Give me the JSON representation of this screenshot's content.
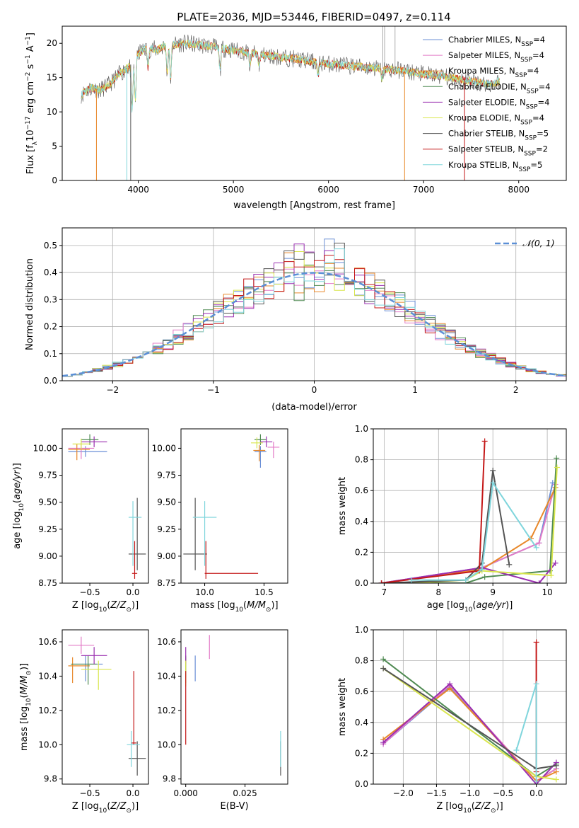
{
  "figure": {
    "title": "PLATE=2036, MJD=53446, FIBERID=0497, z=0.114"
  },
  "palette": {
    "Chabrier MILES": "#6b8fd6",
    "Salpeter MILES": "#e37bc7",
    "Kroupa MILES": "#e8882a",
    "Chabrier ELODIE": "#4f8a52",
    "Salpeter ELODIE": "#9a2fb0",
    "Kroupa ELODIE": "#d9e64d",
    "Chabrier STELIB": "#555555",
    "Salpeter STELIB": "#c41818",
    "Kroupa STELIB": "#7fd5dc",
    "gauss": "#5b8fd6",
    "grid": "#b0b0b0"
  },
  "chart_data": [
    {
      "id": "spectrum",
      "type": "line",
      "title": "PLATE=2036, MJD=53446, FIBERID=0497, z=0.114",
      "xlabel": "wavelength [Angstrom, rest frame]",
      "ylabel": "Flux [f_λ 10^-17 erg cm^-2 s^-1 A^-1]",
      "xlim": [
        3200,
        8500
      ],
      "ylim": [
        0,
        22.5
      ],
      "xticks": [
        4000,
        5000,
        6000,
        7000,
        8000
      ],
      "yticks": [
        0,
        5,
        10,
        15,
        20
      ],
      "grid": false,
      "legend_position": "upper-right",
      "legend": [
        "Chabrier MILES, N_SSP=4",
        "Salpeter MILES, N_SSP=4",
        "Kroupa MILES, N_SSP=4",
        "Chabrier ELODIE, N_SSP=4",
        "Salpeter ELODIE, N_SSP=4",
        "Kroupa ELODIE, N_SSP=4",
        "Chabrier STELIB, N_SSP=5",
        "Salpeter STELIB, N_SSP=2",
        "Kroupa STELIB, N_SSP=5"
      ],
      "continuum": {
        "x": [
          3400,
          3500,
          3600,
          3700,
          3800,
          3900,
          4000,
          4100,
          4200,
          4300,
          4500,
          4700,
          5000,
          5300,
          5600,
          6000,
          6400,
          6800,
          7000,
          7200,
          7500,
          7700,
          7800
        ],
        "y": [
          12.5,
          13.5,
          13.2,
          14.0,
          15.5,
          16.5,
          18.5,
          19.5,
          19.0,
          19.8,
          20.0,
          19.7,
          19.0,
          18.3,
          17.8,
          17.0,
          16.5,
          16.0,
          15.5,
          15.2,
          14.5,
          14.0,
          14.5
        ]
      }
    },
    {
      "id": "residuals",
      "type": "step",
      "xlabel": "(data-model)/error",
      "ylabel": "Normed distribution",
      "xlim": [
        -2.5,
        2.5
      ],
      "ylim": [
        0,
        0.565
      ],
      "xticks": [
        -2,
        -1,
        0,
        1,
        2
      ],
      "yticks": [
        0.0,
        0.1,
        0.2,
        0.3,
        0.4,
        0.5
      ],
      "grid": true,
      "legend": [
        "𝒩(0, 1)"
      ],
      "legend_position": "upper-right",
      "bin_width": 0.1
    },
    {
      "id": "age_vs_Z",
      "type": "errorbar",
      "xlabel": "Z [log10(Z/Z⊙)]",
      "ylabel": "age  [log10(age/yr)]",
      "xlim": [
        -0.82,
        0.18
      ],
      "ylim": [
        8.75,
        10.18
      ],
      "xticks": [
        -0.5,
        0.0
      ],
      "yticks": [
        8.75,
        9.0,
        9.25,
        9.5,
        9.75,
        10.0
      ],
      "grid": false,
      "points": [
        {
          "s": "Chabrier MILES",
          "x": -0.55,
          "y": 9.97,
          "xl": 0.2,
          "xh": 0.25,
          "yl": 0.05,
          "yh": 0.05
        },
        {
          "s": "Salpeter MILES",
          "x": -0.6,
          "y": 10.0,
          "xl": 0.15,
          "xh": 0.15,
          "yl": 0.1,
          "yh": 0.05
        },
        {
          "s": "Kroupa MILES",
          "x": -0.65,
          "y": 9.99,
          "xl": 0.1,
          "xh": 0.15,
          "yl": 0.1,
          "yh": 0.05
        },
        {
          "s": "Chabrier ELODIE",
          "x": -0.5,
          "y": 10.08,
          "xl": 0.1,
          "xh": 0.1,
          "yl": 0.05,
          "yh": 0.05
        },
        {
          "s": "Salpeter ELODIE",
          "x": -0.45,
          "y": 10.06,
          "xl": 0.15,
          "xh": 0.15,
          "yl": 0.05,
          "yh": 0.05
        },
        {
          "s": "Kroupa ELODIE",
          "x": -0.6,
          "y": 10.04,
          "xl": 0.1,
          "xh": 0.1,
          "yl": 0.05,
          "yh": 0.05
        },
        {
          "s": "Chabrier STELIB",
          "x": 0.05,
          "y": 9.02,
          "xl": 0.1,
          "xh": 0.1,
          "yl": 0.15,
          "yh": 0.52
        },
        {
          "s": "Salpeter STELIB",
          "x": 0.02,
          "y": 8.84,
          "xl": 0.03,
          "xh": 0.03,
          "yl": 0.05,
          "yh": 0.3
        },
        {
          "s": "Kroupa STELIB",
          "x": 0.0,
          "y": 9.36,
          "xl": 0.05,
          "xh": 0.1,
          "yl": 0.45,
          "yh": 0.15
        }
      ]
    },
    {
      "id": "age_vs_mass",
      "type": "errorbar",
      "xlabel": "mass [log10(M/M⊙)]",
      "xlim": [
        9.8,
        10.7
      ],
      "ylim": [
        8.75,
        10.18
      ],
      "xticks": [
        10.0,
        10.5
      ],
      "yticks": [
        8.75,
        9.0,
        9.25,
        9.5,
        9.75,
        10.0
      ],
      "grid": false,
      "points": [
        {
          "s": "Chabrier MILES",
          "x": 10.47,
          "y": 9.97,
          "xl": 0.05,
          "xh": 0.05,
          "yl": 0.15,
          "yh": 0.05
        },
        {
          "s": "Salpeter MILES",
          "x": 10.58,
          "y": 10.01,
          "xl": 0.05,
          "xh": 0.05,
          "yl": 0.1,
          "yh": 0.05
        },
        {
          "s": "Kroupa MILES",
          "x": 10.46,
          "y": 9.98,
          "xl": 0.05,
          "xh": 0.05,
          "yl": 0.1,
          "yh": 0.05
        },
        {
          "s": "Chabrier ELODIE",
          "x": 10.47,
          "y": 10.08,
          "xl": 0.05,
          "xh": 0.05,
          "yl": 0.05,
          "yh": 0.05
        },
        {
          "s": "Salpeter ELODIE",
          "x": 10.52,
          "y": 10.06,
          "xl": 0.05,
          "xh": 0.05,
          "yl": 0.05,
          "yh": 0.05
        },
        {
          "s": "Kroupa ELODIE",
          "x": 10.44,
          "y": 10.05,
          "xl": 0.05,
          "xh": 0.05,
          "yl": 0.05,
          "yh": 0.05
        },
        {
          "s": "Chabrier STELIB",
          "x": 9.92,
          "y": 9.02,
          "xl": 0.1,
          "xh": 0.1,
          "yl": 0.15,
          "yh": 0.52
        },
        {
          "s": "Salpeter STELIB",
          "x": 10.01,
          "y": 8.84,
          "xl": 0.01,
          "xh": 0.44,
          "yl": 0.05,
          "yh": 0.3
        },
        {
          "s": "Kroupa STELIB",
          "x": 10.0,
          "y": 9.36,
          "xl": 0.1,
          "xh": 0.1,
          "yl": 0.45,
          "yh": 0.15
        }
      ]
    },
    {
      "id": "weights_vs_age",
      "type": "line",
      "xlabel": "age  [log10(age/yr)]",
      "ylabel": "mass weight",
      "xlim": [
        6.8,
        10.35
      ],
      "ylim": [
        0,
        1.0
      ],
      "xticks": [
        7,
        8,
        9,
        10
      ],
      "yticks": [
        0.0,
        0.2,
        0.4,
        0.6,
        0.8,
        1.0
      ],
      "grid": true,
      "series": [
        {
          "s": "Chabrier MILES",
          "x": [
            6.95,
            8.8,
            9.85,
            10.1
          ],
          "y": [
            0.0,
            0.1,
            0.26,
            0.65
          ]
        },
        {
          "s": "Salpeter MILES",
          "x": [
            6.95,
            8.8,
            9.85,
            10.15
          ],
          "y": [
            0.0,
            0.1,
            0.26,
            0.64
          ]
        },
        {
          "s": "Kroupa MILES",
          "x": [
            6.95,
            8.8,
            9.7,
            10.15
          ],
          "y": [
            0.0,
            0.09,
            0.29,
            0.62
          ]
        },
        {
          "s": "Chabrier ELODIE",
          "x": [
            7.5,
            8.5,
            8.85,
            10.05,
            10.17
          ],
          "y": [
            0.0,
            0.0,
            0.04,
            0.08,
            0.81
          ]
        },
        {
          "s": "Salpeter ELODIE",
          "x": [
            6.95,
            8.8,
            9.85,
            10.15
          ],
          "y": [
            0.0,
            0.1,
            0.0,
            0.13
          ]
        },
        {
          "s": "Kroupa ELODIE",
          "x": [
            7.5,
            8.5,
            8.8,
            10.07,
            10.18
          ],
          "y": [
            0.0,
            0.02,
            0.08,
            0.05,
            0.75
          ]
        },
        {
          "s": "Chabrier STELIB",
          "x": [
            6.95,
            8.5,
            8.8,
            9.0,
            9.3
          ],
          "y": [
            0.0,
            0.02,
            0.13,
            0.73,
            0.12
          ]
        },
        {
          "s": "Salpeter STELIB",
          "x": [
            6.95,
            8.75,
            8.85
          ],
          "y": [
            0.0,
            0.08,
            0.92
          ]
        },
        {
          "s": "Kroupa STELIB",
          "x": [
            7.5,
            8.5,
            8.8,
            9.0,
            9.8
          ],
          "y": [
            0.02,
            0.02,
            0.09,
            0.65,
            0.23
          ]
        }
      ]
    },
    {
      "id": "mass_vs_Z",
      "type": "errorbar",
      "xlabel": "Z [log10(Z/Z⊙)]",
      "ylabel": "mass [log10(M/M⊙)]",
      "xlim": [
        -0.82,
        0.18
      ],
      "ylim": [
        9.77,
        10.67
      ],
      "xticks": [
        -0.5,
        0.0
      ],
      "yticks": [
        9.8,
        10.0,
        10.2,
        10.4,
        10.6
      ],
      "grid": false,
      "points": [
        {
          "s": "Chabrier MILES",
          "x": -0.55,
          "y": 10.47,
          "xl": 0.15,
          "xh": 0.2,
          "yl": 0.1,
          "yh": 0.05
        },
        {
          "s": "Salpeter MILES",
          "x": -0.6,
          "y": 10.58,
          "xl": 0.15,
          "xh": 0.15,
          "yl": 0.05,
          "yh": 0.05
        },
        {
          "s": "Kroupa MILES",
          "x": -0.7,
          "y": 10.46,
          "xl": 0.05,
          "xh": 0.2,
          "yl": 0.1,
          "yh": 0.05
        },
        {
          "s": "Chabrier ELODIE",
          "x": -0.52,
          "y": 10.47,
          "xl": 0.2,
          "xh": 0.1,
          "yl": 0.12,
          "yh": 0.05
        },
        {
          "s": "Salpeter ELODIE",
          "x": -0.45,
          "y": 10.52,
          "xl": 0.15,
          "xh": 0.15,
          "yl": 0.05,
          "yh": 0.05
        },
        {
          "s": "Kroupa ELODIE",
          "x": -0.4,
          "y": 10.44,
          "xl": 0.2,
          "xh": 0.15,
          "yl": 0.12,
          "yh": 0.05
        },
        {
          "s": "Chabrier STELIB",
          "x": 0.05,
          "y": 9.92,
          "xl": 0.1,
          "xh": 0.1,
          "yl": 0.1,
          "yh": 0.1
        },
        {
          "s": "Salpeter STELIB",
          "x": 0.01,
          "y": 10.01,
          "xl": 0.03,
          "xh": 0.03,
          "yl": 0.01,
          "yh": 0.42
        },
        {
          "s": "Kroupa STELIB",
          "x": -0.02,
          "y": 10.0,
          "xl": 0.05,
          "xh": 0.1,
          "yl": 0.13,
          "yh": 0.08
        }
      ]
    },
    {
      "id": "mass_vs_ebv",
      "type": "errorbar",
      "xlabel": "E(B-V)",
      "xlim": [
        -0.002,
        0.043
      ],
      "ylim": [
        9.77,
        10.67
      ],
      "xticks": [
        0.0,
        0.025
      ],
      "yticks": [
        9.8,
        10.0,
        10.2,
        10.4,
        10.6
      ],
      "grid": false,
      "points": [
        {
          "s": "Chabrier MILES",
          "x": 0.004,
          "y": 10.47,
          "xl": 0,
          "xh": 0,
          "yl": 0.1,
          "yh": 0.05
        },
        {
          "s": "Salpeter MILES",
          "x": 0.01,
          "y": 10.58,
          "xl": 0,
          "xh": 0,
          "yl": 0.08,
          "yh": 0.06
        },
        {
          "s": "Kroupa MILES",
          "x": 0.0,
          "y": 10.46,
          "xl": 0,
          "xh": 0,
          "yl": 0.1,
          "yh": 0.05
        },
        {
          "s": "Chabrier ELODIE",
          "x": 0.0,
          "y": 10.47,
          "xl": 0,
          "xh": 0,
          "yl": 0.08,
          "yh": 0.05
        },
        {
          "s": "Salpeter ELODIE",
          "x": 0.0,
          "y": 10.52,
          "xl": 0,
          "xh": 0,
          "yl": 0.05,
          "yh": 0.05
        },
        {
          "s": "Kroupa ELODIE",
          "x": 0.0,
          "y": 10.44,
          "xl": 0,
          "xh": 0,
          "yl": 0.1,
          "yh": 0.05
        },
        {
          "s": "Chabrier STELIB",
          "x": 0.04,
          "y": 9.92,
          "xl": 0,
          "xh": 0,
          "yl": 0.1,
          "yh": 0.1
        },
        {
          "s": "Salpeter STELIB",
          "x": 0.0,
          "y": 10.01,
          "xl": 0,
          "xh": 0,
          "yl": 0.01,
          "yh": 0.42
        },
        {
          "s": "Kroupa STELIB",
          "x": 0.04,
          "y": 10.0,
          "xl": 0,
          "xh": 0,
          "yl": 0.13,
          "yh": 0.08
        }
      ]
    },
    {
      "id": "weights_vs_Z",
      "type": "line",
      "xlabel": "Z [log10(Z/Z⊙)]",
      "ylabel": "mass weight",
      "xlim": [
        -2.45,
        0.45
      ],
      "ylim": [
        0,
        1.0
      ],
      "xticks": [
        -2.0,
        -1.5,
        -1.0,
        -0.5,
        0.0
      ],
      "yticks": [
        0.0,
        0.2,
        0.4,
        0.6,
        0.8,
        1.0
      ],
      "grid": true,
      "series": [
        {
          "s": "Chabrier MILES",
          "x": [
            -2.3,
            -1.3,
            0.0,
            0.3
          ],
          "y": [
            0.26,
            0.63,
            0.02,
            0.1
          ]
        },
        {
          "s": "Salpeter MILES",
          "x": [
            -2.3,
            -1.3,
            0.0,
            0.3
          ],
          "y": [
            0.26,
            0.64,
            0.02,
            0.1
          ]
        },
        {
          "s": "Kroupa MILES",
          "x": [
            -2.3,
            -1.3,
            0.0,
            0.3
          ],
          "y": [
            0.29,
            0.62,
            0.02,
            0.08
          ]
        },
        {
          "s": "Chabrier ELODIE",
          "x": [
            -2.3,
            0.0,
            0.3
          ],
          "y": [
            0.81,
            0.05,
            0.13
          ]
        },
        {
          "s": "Salpeter ELODIE",
          "x": [
            -2.3,
            -1.3,
            0.0,
            0.3
          ],
          "y": [
            0.27,
            0.65,
            0.0,
            0.14
          ]
        },
        {
          "s": "Kroupa ELODIE",
          "x": [
            -2.3,
            0.0,
            0.3
          ],
          "y": [
            0.75,
            0.05,
            0.03
          ]
        },
        {
          "s": "Chabrier STELIB",
          "x": [
            -2.3,
            0.0,
            0.3
          ],
          "y": [
            0.75,
            0.1,
            0.12
          ]
        },
        {
          "s": "Salpeter STELIB",
          "x": [
            0.0,
            0.0
          ],
          "y": [
            0.08,
            0.92
          ]
        },
        {
          "s": "Kroupa STELIB",
          "x": [
            -0.3,
            0.0,
            0.0
          ],
          "y": [
            0.22,
            0.65,
            0.02
          ]
        }
      ]
    }
  ]
}
